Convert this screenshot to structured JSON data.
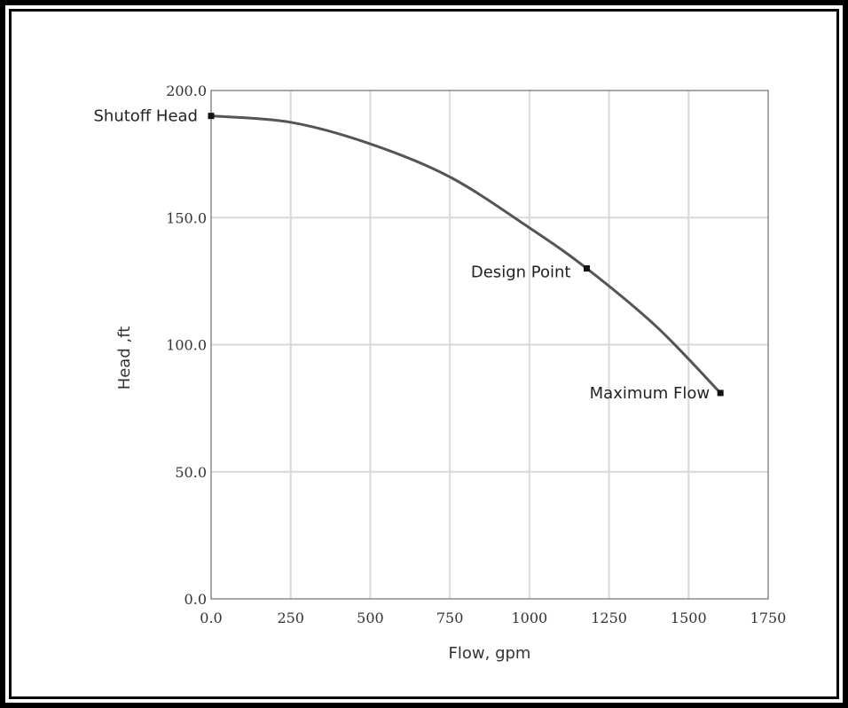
{
  "chart_data": {
    "type": "line",
    "xlabel": "Flow, gpm",
    "ylabel": "Head ,ft",
    "xlim": [
      0,
      1750
    ],
    "ylim": [
      0,
      200
    ],
    "x_ticks": [
      "0.0",
      "250",
      "500",
      "750",
      "1000",
      "1250",
      "1500",
      "1750"
    ],
    "x_tick_values": [
      0,
      250,
      500,
      750,
      1000,
      1250,
      1500,
      1750
    ],
    "y_ticks": [
      "0.0",
      "50.0",
      "100.0",
      "150.0",
      "200.0"
    ],
    "y_tick_values": [
      0,
      50,
      100,
      150,
      200
    ],
    "grid": true,
    "series": [
      {
        "x": [
          0,
          250,
          500,
          750,
          1000,
          1180,
          1400,
          1600
        ],
        "y": [
          190,
          187.5,
          179,
          166,
          146,
          130,
          107,
          81
        ],
        "color": "#555555"
      }
    ],
    "points": [
      {
        "label": "Shutoff Head",
        "x": 0,
        "y": 190
      },
      {
        "label": "Design Point",
        "x": 1180,
        "y": 130
      },
      {
        "label": "Maximum Flow",
        "x": 1600,
        "y": 81
      }
    ]
  }
}
